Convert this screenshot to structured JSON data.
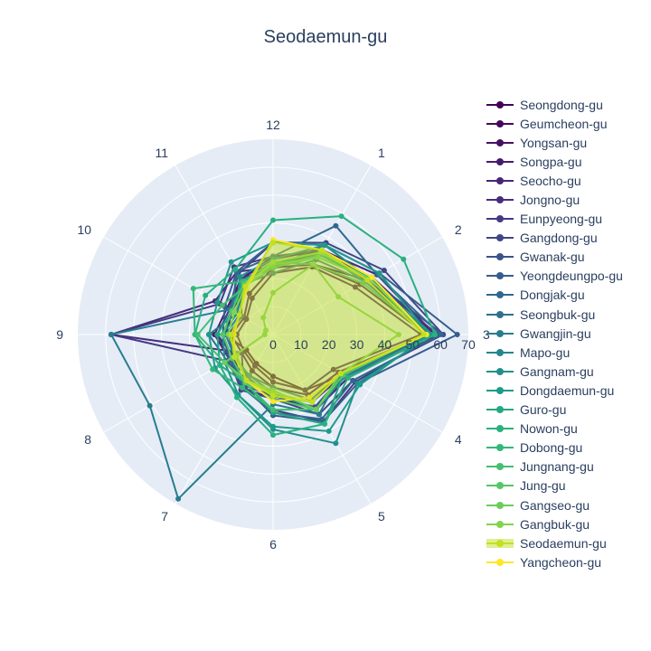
{
  "chart_data": {
    "type": "radar",
    "title": "Seodaemun-gu",
    "angular_labels": [
      "12",
      "1",
      "2",
      "3",
      "4",
      "5",
      "6",
      "7",
      "8",
      "9",
      "10",
      "11"
    ],
    "radial_ticks": [
      "0",
      "10",
      "20",
      "30",
      "40",
      "50",
      "60",
      "70"
    ],
    "rlim": [
      0,
      70
    ],
    "grid": true,
    "legend_position": "right",
    "highlight": "Seodaemun-gu",
    "series": [
      {
        "name": "Seongdong-gu",
        "color": "#440154",
        "values": [
          26,
          29,
          39,
          56,
          29,
          23,
          15,
          12,
          11,
          17,
          17,
          20
        ]
      },
      {
        "name": "Geumcheon-gu",
        "color": "#46085c",
        "values": [
          24,
          29,
          36,
          55,
          27,
          25,
          19,
          15,
          13,
          15,
          12,
          17
        ]
      },
      {
        "name": "Yongsan-gu",
        "color": "#471063",
        "values": [
          22,
          28,
          34,
          53,
          25,
          23,
          17,
          13,
          12,
          13,
          11,
          15
        ]
      },
      {
        "name": "Songpa-gu",
        "color": "#481a6c",
        "values": [
          28,
          34,
          41,
          58,
          30,
          30,
          23,
          20,
          18,
          21,
          19,
          23
        ]
      },
      {
        "name": "Seocho-gu",
        "color": "#482475",
        "values": [
          27,
          35,
          43,
          58,
          31,
          31,
          23,
          22,
          16,
          20,
          18,
          23
        ]
      },
      {
        "name": "Jongno-gu",
        "color": "#472d7b",
        "values": [
          24,
          34,
          39,
          56,
          29,
          28,
          22,
          21,
          13,
          58,
          24,
          26
        ]
      },
      {
        "name": "Eunpyeong-gu",
        "color": "#443a83",
        "values": [
          28,
          35,
          40,
          59,
          34,
          36,
          27,
          22,
          19,
          58,
          22,
          28
        ]
      },
      {
        "name": "Gangdong-gu",
        "color": "#404688",
        "values": [
          33,
          38,
          46,
          61,
          33,
          33,
          23,
          23,
          18,
          20,
          18,
          25
        ]
      },
      {
        "name": "Gwanak-gu",
        "color": "#3b528b",
        "values": [
          24,
          37,
          40,
          61,
          29,
          30,
          22,
          18,
          16,
          16,
          13,
          23
        ]
      },
      {
        "name": "Yeongdeungpo-gu",
        "color": "#365d8d",
        "values": [
          33,
          37,
          44,
          66,
          35,
          36,
          29,
          21,
          18,
          18,
          20,
          26
        ]
      },
      {
        "name": "Dongjak-gu",
        "color": "#31688e",
        "values": [
          28,
          45,
          43,
          60,
          33,
          35,
          28,
          22,
          17,
          18,
          17,
          26
        ]
      },
      {
        "name": "Seongbuk-gu",
        "color": "#2c728e",
        "values": [
          22,
          31,
          38,
          55,
          28,
          27,
          19,
          17,
          19,
          23,
          15,
          21
        ]
      },
      {
        "name": "Gwangjin-gu",
        "color": "#287c8e",
        "values": [
          26,
          33,
          40,
          56,
          28,
          33,
          25,
          68,
          51,
          58,
          18,
          22
        ]
      },
      {
        "name": "Mapo-gu",
        "color": "#24868e",
        "values": [
          25,
          34,
          38,
          57,
          30,
          31,
          21,
          17,
          16,
          17,
          14,
          21
        ]
      },
      {
        "name": "Gangnam-gu",
        "color": "#21908d",
        "values": [
          27,
          37,
          40,
          57,
          35,
          45,
          34,
          25,
          20,
          18,
          15,
          24
        ]
      },
      {
        "name": "Dongdaemun-gu",
        "color": "#1f9a8a",
        "values": [
          33,
          37,
          44,
          56,
          36,
          40,
          33,
          25,
          24,
          23,
          23,
          30
        ]
      },
      {
        "name": "Guro-gu",
        "color": "#22a884",
        "values": [
          24,
          33,
          41,
          55,
          29,
          37,
          28,
          20,
          22,
          20,
          17,
          22
        ]
      },
      {
        "name": "Nowon-gu",
        "color": "#2ab07f",
        "values": [
          41,
          49,
          54,
          58,
          31,
          37,
          36,
          26,
          22,
          28,
          28,
          27
        ]
      },
      {
        "name": "Dobong-gu",
        "color": "#35b779",
        "values": [
          26,
          29,
          37,
          55,
          29,
          31,
          27,
          22,
          25,
          28,
          33,
          22
        ]
      },
      {
        "name": "Jungnang-gu",
        "color": "#44bf70",
        "values": [
          24,
          32,
          40,
          55,
          29,
          31,
          27,
          20,
          20,
          27,
          21,
          20
        ]
      },
      {
        "name": "Jung-gu",
        "color": "#56c667",
        "values": [
          25,
          32,
          40,
          55,
          29,
          31,
          23,
          20,
          17,
          18,
          17,
          21
        ]
      },
      {
        "name": "Gangseo-gu",
        "color": "#6ccd5a",
        "values": [
          15,
          29,
          27,
          45,
          28,
          31,
          20,
          19,
          20,
          3,
          3,
          7
        ]
      },
      {
        "name": "Gangbuk-gu",
        "color": "#84d44b",
        "values": [
          26,
          34,
          40,
          55,
          28,
          28,
          21,
          19,
          15,
          16,
          16,
          20
        ]
      },
      {
        "name": "Seodaemun-gu",
        "color": "#c2df23",
        "values": [
          33,
          35,
          39,
          54,
          28,
          28,
          22,
          19,
          16,
          15,
          14,
          20
        ]
      },
      {
        "name": "Yangcheon-gu",
        "color": "#fde725",
        "values": [
          34,
          35,
          41,
          55,
          28,
          26,
          24,
          19,
          16,
          14,
          14,
          19
        ]
      }
    ]
  }
}
